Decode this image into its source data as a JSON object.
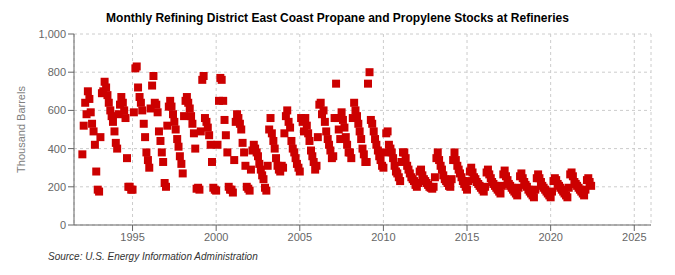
{
  "chart_data": {
    "type": "scatter",
    "title": "Monthly Refining District East Coast Propane and Propylene Stocks at Refineries",
    "ylabel": "Thousand Barrels",
    "annotations": [
      "Source: U.S. Energy Information Administration"
    ],
    "color": "#cc0000",
    "marker": "square",
    "grid": true,
    "xlim": [
      1991.5,
      2026.0
    ],
    "xticks": [
      1995,
      2000,
      2005,
      2010,
      2015,
      2020,
      2025
    ],
    "ylim": [
      0,
      1000
    ],
    "yticks": [
      0,
      200,
      400,
      600,
      800,
      {
        "value": 1000,
        "label": "1,000"
      }
    ],
    "x": [
      1992.0,
      1992.08,
      1992.17,
      1992.25,
      1992.33,
      1992.42,
      1992.5,
      1992.58,
      1992.67,
      1992.75,
      1992.83,
      1992.92,
      1993.0,
      1993.08,
      1993.17,
      1993.25,
      1993.33,
      1993.42,
      1993.5,
      1993.58,
      1993.67,
      1993.75,
      1993.83,
      1993.92,
      1994.0,
      1994.08,
      1994.17,
      1994.25,
      1994.33,
      1994.42,
      1994.5,
      1994.58,
      1994.67,
      1994.75,
      1994.83,
      1994.92,
      1995.0,
      1995.08,
      1995.17,
      1995.25,
      1995.33,
      1995.42,
      1995.5,
      1995.58,
      1995.67,
      1995.75,
      1995.83,
      1995.92,
      1996.0,
      1996.08,
      1996.17,
      1996.25,
      1996.33,
      1996.42,
      1996.5,
      1996.58,
      1996.67,
      1996.75,
      1996.83,
      1996.92,
      1997.0,
      1997.08,
      1997.17,
      1997.25,
      1997.33,
      1997.42,
      1997.5,
      1997.58,
      1997.67,
      1997.75,
      1997.83,
      1997.92,
      1998.0,
      1998.08,
      1998.17,
      1998.25,
      1998.33,
      1998.42,
      1998.5,
      1998.58,
      1998.67,
      1998.75,
      1998.83,
      1998.92,
      1999.0,
      1999.08,
      1999.17,
      1999.25,
      1999.33,
      1999.42,
      1999.5,
      1999.58,
      1999.67,
      1999.75,
      1999.83,
      1999.92,
      2000.0,
      2000.08,
      2000.17,
      2000.25,
      2000.33,
      2000.42,
      2000.5,
      2000.58,
      2000.67,
      2000.75,
      2000.83,
      2000.92,
      2001.0,
      2001.08,
      2001.17,
      2001.25,
      2001.33,
      2001.42,
      2001.5,
      2001.58,
      2001.67,
      2001.75,
      2001.83,
      2001.92,
      2002.0,
      2002.08,
      2002.17,
      2002.25,
      2002.33,
      2002.42,
      2002.5,
      2002.58,
      2002.67,
      2002.75,
      2002.83,
      2002.92,
      2003.0,
      2003.08,
      2003.17,
      2003.25,
      2003.33,
      2003.42,
      2003.5,
      2003.58,
      2003.67,
      2003.75,
      2003.83,
      2003.92,
      2004.0,
      2004.08,
      2004.17,
      2004.25,
      2004.33,
      2004.42,
      2004.5,
      2004.58,
      2004.67,
      2004.75,
      2004.83,
      2004.92,
      2005.0,
      2005.08,
      2005.17,
      2005.25,
      2005.33,
      2005.42,
      2005.5,
      2005.58,
      2005.67,
      2005.75,
      2005.83,
      2005.92,
      2006.0,
      2006.08,
      2006.17,
      2006.25,
      2006.33,
      2006.42,
      2006.5,
      2006.58,
      2006.67,
      2006.75,
      2006.83,
      2006.92,
      2007.0,
      2007.08,
      2007.17,
      2007.25,
      2007.33,
      2007.42,
      2007.5,
      2007.58,
      2007.67,
      2007.75,
      2007.83,
      2007.92,
      2008.0,
      2008.08,
      2008.17,
      2008.25,
      2008.33,
      2008.42,
      2008.5,
      2008.58,
      2008.67,
      2008.75,
      2008.83,
      2008.92,
      2009.0,
      2009.08,
      2009.17,
      2009.25,
      2009.33,
      2009.42,
      2009.5,
      2009.58,
      2009.67,
      2009.75,
      2009.83,
      2009.92,
      2010.0,
      2010.08,
      2010.17,
      2010.25,
      2010.33,
      2010.42,
      2010.5,
      2010.58,
      2010.67,
      2010.75,
      2010.83,
      2010.92,
      2011.0,
      2011.08,
      2011.17,
      2011.25,
      2011.33,
      2011.42,
      2011.5,
      2011.58,
      2011.67,
      2011.75,
      2011.83,
      2011.92,
      2012.0,
      2012.08,
      2012.17,
      2012.25,
      2012.33,
      2012.42,
      2012.5,
      2012.58,
      2012.67,
      2012.75,
      2012.83,
      2012.92,
      2013.0,
      2013.08,
      2013.17,
      2013.25,
      2013.33,
      2013.42,
      2013.5,
      2013.58,
      2013.67,
      2013.75,
      2013.83,
      2013.92,
      2014.0,
      2014.08,
      2014.17,
      2014.25,
      2014.33,
      2014.42,
      2014.5,
      2014.58,
      2014.67,
      2014.75,
      2014.83,
      2014.92,
      2015.0,
      2015.08,
      2015.17,
      2015.25,
      2015.33,
      2015.42,
      2015.5,
      2015.58,
      2015.67,
      2015.75,
      2015.83,
      2015.92,
      2016.0,
      2016.08,
      2016.17,
      2016.25,
      2016.33,
      2016.42,
      2016.5,
      2016.58,
      2016.67,
      2016.75,
      2016.83,
      2016.92,
      2017.0,
      2017.08,
      2017.17,
      2017.25,
      2017.33,
      2017.42,
      2017.5,
      2017.58,
      2017.67,
      2017.75,
      2017.83,
      2017.92,
      2018.0,
      2018.08,
      2018.17,
      2018.25,
      2018.33,
      2018.42,
      2018.5,
      2018.58,
      2018.67,
      2018.75,
      2018.83,
      2018.92,
      2019.0,
      2019.08,
      2019.17,
      2019.25,
      2019.33,
      2019.42,
      2019.5,
      2019.58,
      2019.67,
      2019.75,
      2019.83,
      2019.92,
      2020.0,
      2020.08,
      2020.17,
      2020.25,
      2020.33,
      2020.42,
      2020.5,
      2020.58,
      2020.67,
      2020.75,
      2020.83,
      2020.92,
      2021.0,
      2021.08,
      2021.17,
      2021.25,
      2021.33,
      2021.42,
      2021.5,
      2021.58,
      2021.67,
      2021.75,
      2021.83,
      2021.92,
      2022.0,
      2022.08,
      2022.17,
      2022.25,
      2022.33,
      2022.42
    ],
    "values": [
      370,
      520,
      640,
      580,
      700,
      660,
      590,
      530,
      490,
      420,
      280,
      185,
      175,
      460,
      690,
      700,
      750,
      720,
      680,
      640,
      600,
      570,
      540,
      490,
      430,
      400,
      580,
      630,
      670,
      640,
      600,
      560,
      350,
      200,
      200,
      185,
      185,
      590,
      820,
      830,
      720,
      670,
      640,
      600,
      530,
      460,
      380,
      340,
      300,
      610,
      730,
      780,
      640,
      630,
      590,
      490,
      440,
      380,
      330,
      220,
      200,
      520,
      620,
      650,
      620,
      580,
      540,
      500,
      450,
      410,
      360,
      320,
      270,
      570,
      650,
      670,
      640,
      610,
      570,
      530,
      480,
      400,
      190,
      195,
      185,
      490,
      760,
      780,
      560,
      540,
      510,
      470,
      420,
      330,
      195,
      185,
      180,
      420,
      650,
      770,
      760,
      650,
      550,
      470,
      380,
      200,
      185,
      185,
      170,
      340,
      540,
      580,
      560,
      530,
      500,
      430,
      380,
      310,
      200,
      190,
      180,
      290,
      390,
      420,
      400,
      380,
      360,
      320,
      290,
      260,
      240,
      195,
      180,
      310,
      500,
      560,
      480,
      440,
      400,
      350,
      310,
      290,
      280,
      310,
      300,
      480,
      570,
      600,
      540,
      510,
      440,
      400,
      380,
      350,
      320,
      300,
      280,
      560,
      540,
      490,
      560,
      520,
      480,
      440,
      390,
      360,
      330,
      290,
      310,
      460,
      630,
      640,
      580,
      600,
      540,
      490,
      450,
      420,
      390,
      350,
      360,
      560,
      740,
      560,
      500,
      450,
      590,
      550,
      510,
      460,
      420,
      380,
      380,
      350,
      560,
      640,
      600,
      570,
      530,
      490,
      450,
      400,
      370,
      330,
      330,
      740,
      800,
      550,
      530,
      490,
      450,
      420,
      390,
      360,
      340,
      310,
      300,
      380,
      480,
      490,
      420,
      400,
      380,
      350,
      310,
      280,
      270,
      250,
      230,
      330,
      380,
      380,
      350,
      310,
      290,
      270,
      250,
      240,
      230,
      210,
      200,
      220,
      280,
      290,
      260,
      240,
      230,
      220,
      210,
      200,
      195,
      190,
      200,
      250,
      350,
      380,
      340,
      310,
      290,
      260,
      240,
      230,
      220,
      205,
      200,
      240,
      340,
      380,
      340,
      310,
      290,
      270,
      250,
      230,
      215,
      200,
      185,
      230,
      280,
      300,
      275,
      250,
      240,
      225,
      215,
      205,
      195,
      185,
      175,
      200,
      275,
      290,
      265,
      245,
      225,
      215,
      205,
      195,
      185,
      175,
      165,
      205,
      265,
      285,
      255,
      235,
      215,
      205,
      195,
      185,
      175,
      165,
      155,
      195,
      255,
      270,
      245,
      225,
      210,
      200,
      185,
      175,
      165,
      155,
      145,
      185,
      245,
      265,
      245,
      225,
      205,
      195,
      185,
      175,
      165,
      155,
      145,
      175,
      230,
      245,
      235,
      215,
      205,
      195,
      185,
      175,
      165,
      155,
      145,
      195,
      265,
      275,
      255,
      225,
      215,
      205,
      195,
      185,
      175,
      165,
      155,
      185,
      235,
      245,
      225,
      205
    ]
  }
}
